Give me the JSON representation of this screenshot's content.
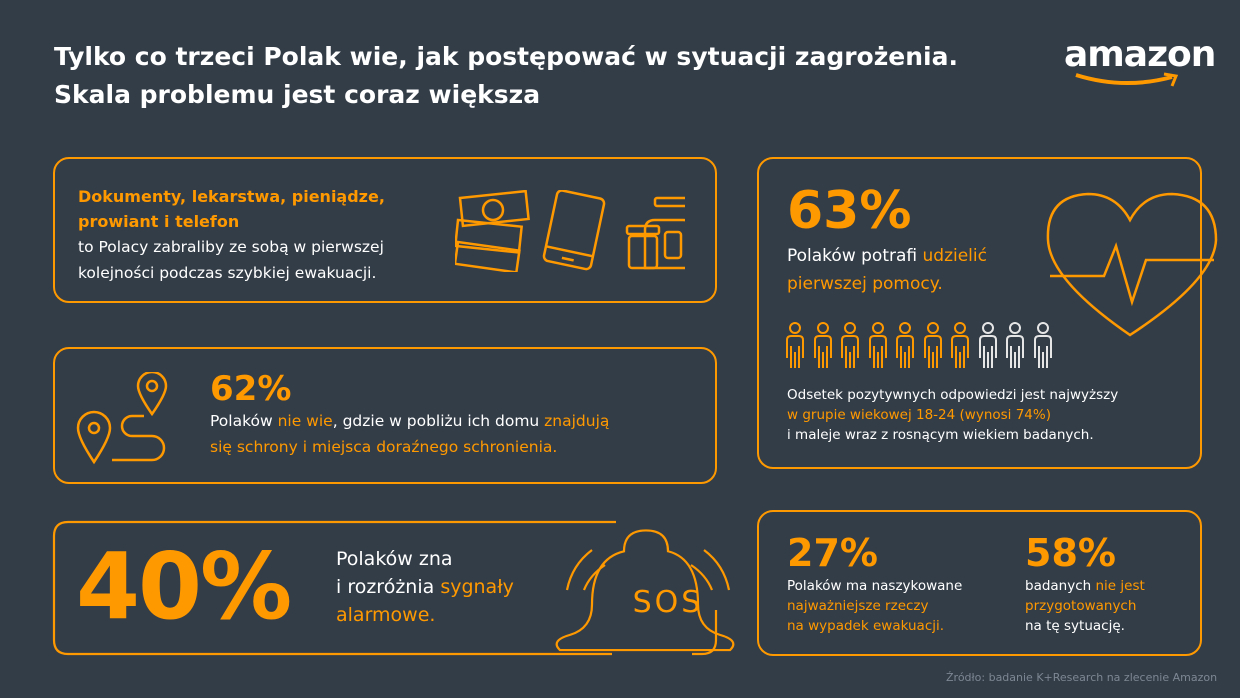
{
  "title": {
    "line1": "Tylko co trzeci Polak wie, jak postępować w sytuacji zagrożenia.",
    "line2": "Skala problemu jest coraz większa"
  },
  "logo": "amazon",
  "box_items": {
    "highlight_line1": "Dokumenty, lekarstwa, pieniądze,",
    "highlight_line2": "prowiant i telefon",
    "text_line1": "to Polacy zabraliby ze sobą w pierwszej",
    "text_line2": "kolejności podczas szybkiej ewakuacji."
  },
  "box_shelters": {
    "percent": "62%",
    "p1": "Polaków ",
    "p2": "nie wie",
    "p3": ", gdzie w pobliżu ich domu ",
    "p4": "znajdują",
    "p5": "się schrony i miejsca doraźnego schronienia."
  },
  "box_alarms": {
    "percent": "40%",
    "p1": "Polaków zna",
    "p2": "i rozróżnia ",
    "p3": "sygnały",
    "p4": "alarmowe.",
    "bell_text": "SOS"
  },
  "box_first_aid": {
    "percent": "63%",
    "p1": "Polaków potrafi ",
    "p2": "udzielić",
    "p3": "pierwszej pomocy.",
    "people_filled_fraction": 0.7,
    "n1": "Odsetek pozytywnych odpowiedzi jest najwyższy",
    "n2": "w grupie wiekowej 18-24 (wynosi 74%)",
    "n3": "i maleje wraz z rosnącym wiekiem badanych."
  },
  "box_evac": {
    "a_percent": "27%",
    "a1": "Polaków ma naszykowane",
    "a2": "najważniejsze rzeczy",
    "a3": "na wypadek ewakuacji.",
    "b_percent": "58%",
    "b1": "badanych ",
    "b2": "nie jest",
    "b3": "przygotowanych",
    "b4": "na tę sytuację."
  },
  "source": "Źródło: badanie K+Research na zlecenie Amazon",
  "colors": {
    "background": "#333d48",
    "accent": "#ff9900"
  }
}
